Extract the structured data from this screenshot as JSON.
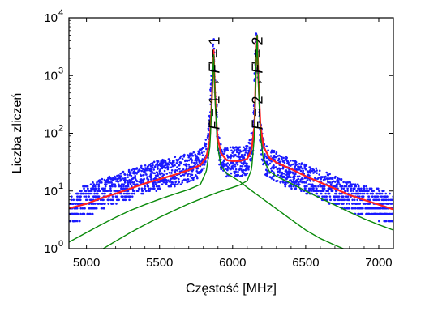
{
  "chart_data": {
    "type": "scatter",
    "title": "",
    "xlabel": "Częstość [MHz]",
    "ylabel": "Liczba zliczeń",
    "xlim": [
      4880,
      7100
    ],
    "ylim": [
      1,
      10000
    ],
    "y_scale": "log",
    "grid": false,
    "legend": "none",
    "x_ticks": [
      {
        "value": 5000,
        "label": "5000"
      },
      {
        "value": 5500,
        "label": "5500"
      },
      {
        "value": 6000,
        "label": "6000"
      },
      {
        "value": 6500,
        "label": "6500"
      },
      {
        "value": 7000,
        "label": "7000"
      }
    ],
    "y_ticks": [
      {
        "value": 1,
        "base": "10",
        "exp": "0"
      },
      {
        "value": 10,
        "base": "10",
        "exp": "1"
      },
      {
        "value": 100,
        "base": "10",
        "exp": "2"
      },
      {
        "value": 1000,
        "base": "10",
        "exp": "3"
      },
      {
        "value": 10000,
        "base": "10",
        "exp": "4"
      }
    ],
    "annotations": [
      {
        "id": "peak1",
        "x": 5870,
        "parts": [
          "F",
          " = 1 → ",
          "F",
          "' = 1"
        ],
        "italic": [
          true,
          false,
          true,
          false
        ]
      },
      {
        "id": "peak2",
        "x": 6165,
        "parts": [
          "F",
          " = 2 → ",
          "F",
          "' = 2"
        ],
        "italic": [
          true,
          false,
          true,
          false
        ]
      }
    ],
    "series": [
      {
        "role": "measured data",
        "mark": "points",
        "color": "#1a1aff",
        "x": [
          4900,
          5000,
          5100,
          5200,
          5300,
          5400,
          5500,
          5600,
          5700,
          5780,
          5830,
          5855,
          5870,
          5885,
          5910,
          5950,
          6000,
          6050,
          6100,
          6140,
          6160,
          6170,
          6190,
          6220,
          6300,
          6400,
          6500,
          6600,
          6700,
          6800,
          6900,
          7000,
          7100
        ],
        "y": [
          5,
          7,
          9,
          11,
          13,
          16,
          19,
          22,
          25,
          30,
          50,
          800,
          3000,
          300,
          45,
          32,
          32,
          32,
          34,
          80,
          5000,
          2000,
          90,
          35,
          26,
          20,
          16,
          13,
          10,
          8,
          7,
          6,
          5
        ],
        "y_spread_factor": 1.8
      },
      {
        "role": "total fit",
        "mark": "line",
        "color": "#ff2020",
        "x": [
          4880,
          5000,
          5100,
          5200,
          5300,
          5400,
          5500,
          5600,
          5700,
          5780,
          5820,
          5845,
          5860,
          5870,
          5880,
          5895,
          5920,
          5960,
          6000,
          6050,
          6100,
          6130,
          6150,
          6160,
          6168,
          6176,
          6190,
          6210,
          6250,
          6300,
          6400,
          6500,
          6600,
          6700,
          6800,
          6900,
          7000,
          7100
        ],
        "y": [
          5,
          6,
          7.5,
          9,
          11,
          13.5,
          16,
          19,
          23,
          28,
          38,
          80,
          500,
          2800,
          450,
          90,
          45,
          34,
          33,
          33,
          36,
          52,
          140,
          1500,
          5200,
          900,
          140,
          60,
          38,
          31,
          24,
          18,
          14,
          11,
          8.5,
          7,
          5.8,
          4.8
        ]
      },
      {
        "role": "component 1",
        "mark": "line",
        "color": "#0a8a0a",
        "x": [
          4880,
          5000,
          5100,
          5200,
          5300,
          5400,
          5500,
          5600,
          5700,
          5780,
          5820,
          5845,
          5860,
          5870,
          5880,
          5895,
          5920,
          5960,
          6000,
          6050,
          6100,
          6200,
          6300,
          6400,
          6500,
          6600,
          6700,
          6800
        ],
        "y": [
          1.3,
          1.9,
          2.6,
          3.5,
          4.6,
          5.8,
          7.2,
          8.8,
          10.6,
          13,
          22,
          60,
          450,
          2600,
          400,
          65,
          27,
          20,
          17.5,
          14.5,
          11.5,
          7.5,
          4.9,
          3.2,
          2.1,
          1.5,
          1.15,
          0.9
        ]
      },
      {
        "role": "component 2",
        "mark": "line",
        "color": "#0a8a0a",
        "x": [
          5100,
          5200,
          5300,
          5400,
          5500,
          5600,
          5700,
          5800,
          5900,
          6000,
          6050,
          6100,
          6130,
          6150,
          6160,
          6168,
          6176,
          6190,
          6210,
          6250,
          6300,
          6400,
          6500,
          6600,
          6700,
          6800,
          6900,
          7000,
          7100
        ],
        "y": [
          0.95,
          1.35,
          1.9,
          2.6,
          3.5,
          4.6,
          6.0,
          7.6,
          9.5,
          11.5,
          12.7,
          15,
          24,
          95,
          1300,
          5000,
          800,
          95,
          36,
          22,
          18,
          13.5,
          10,
          7.5,
          5.7,
          4.3,
          3.3,
          2.6,
          2.1
        ]
      }
    ]
  }
}
